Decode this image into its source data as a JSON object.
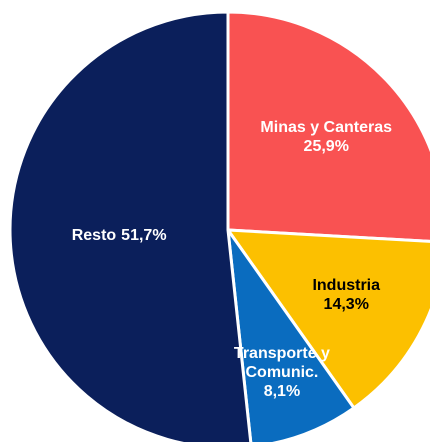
{
  "chart_data": {
    "type": "pie",
    "categories": [
      "Minas y Canteras",
      "Industria",
      "Transporte y Comunic.",
      "Resto"
    ],
    "values": [
      25.9,
      14.3,
      8.1,
      51.7
    ],
    "value_labels": [
      "25,9%",
      "14,3%",
      "8,1%",
      "51,7%"
    ],
    "colors": [
      "#f95252",
      "#fcc000",
      "#0a6cbf",
      "#0b1f5b"
    ]
  }
}
